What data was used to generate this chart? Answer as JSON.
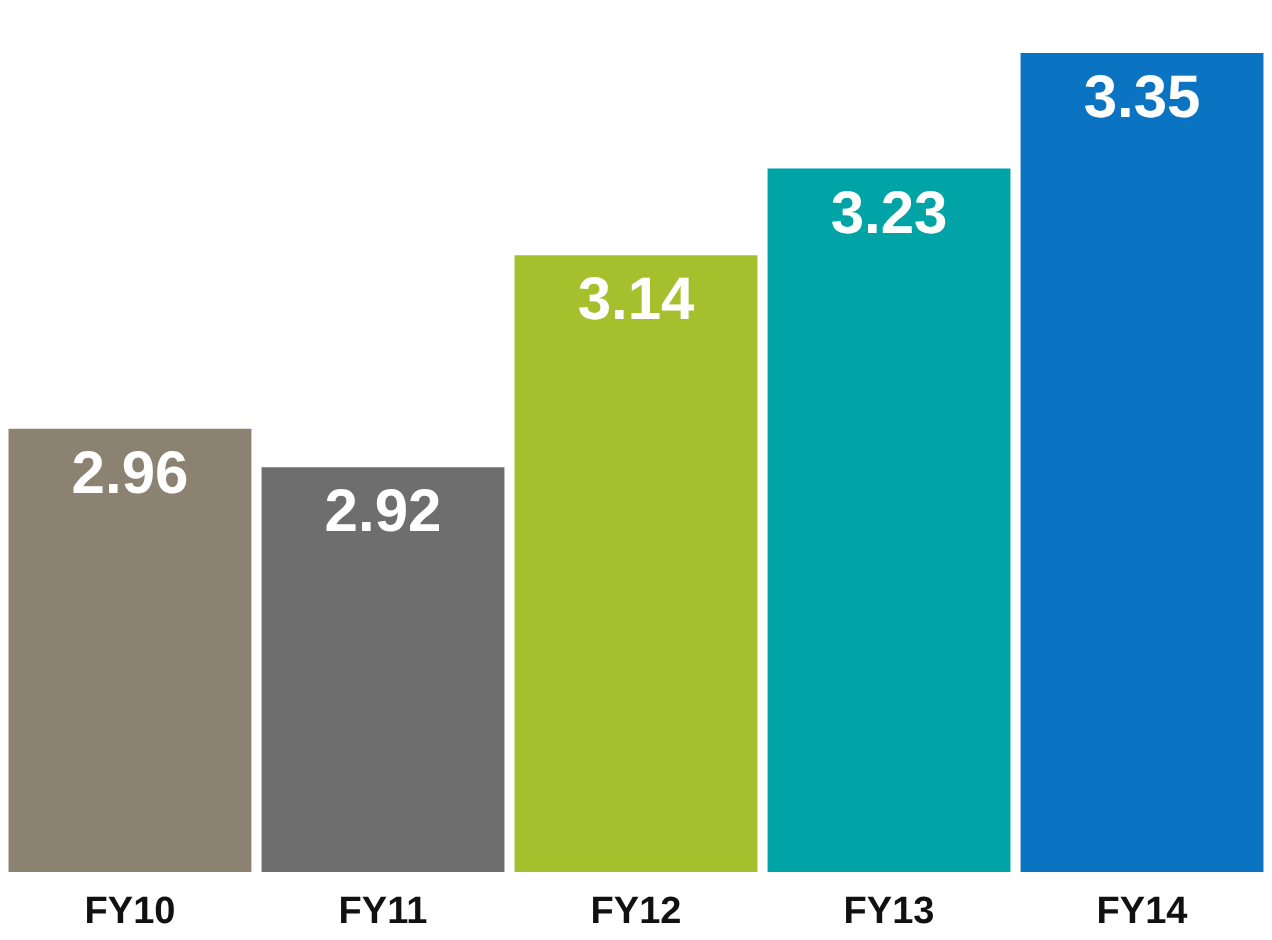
{
  "chart_data": {
    "type": "bar",
    "categories": [
      "FY10",
      "FY11",
      "FY12",
      "FY13",
      "FY14"
    ],
    "values": [
      2.96,
      2.92,
      3.14,
      3.23,
      3.35
    ],
    "colors": [
      "#8c8272",
      "#6e6e6e",
      "#a6bf2c",
      "#00a3a6",
      "#0a74c2"
    ],
    "tick_labels": "x",
    "data_labels": true,
    "grid": false,
    "legend": false
  }
}
